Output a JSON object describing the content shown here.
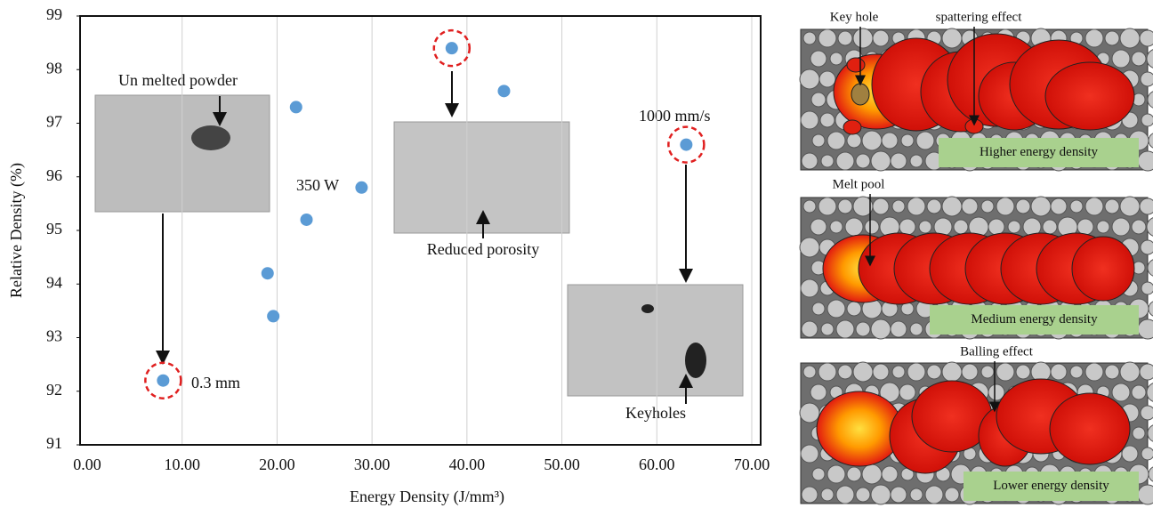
{
  "chart_data": {
    "type": "scatter",
    "x_label": "Energy Density (J/mm³)",
    "y_label": "Relative Density (%)",
    "x": [
      8.0,
      19.0,
      19.6,
      22.0,
      23.1,
      28.9,
      38.4,
      43.9,
      63.1
    ],
    "values": [
      92.2,
      94.2,
      93.4,
      97.3,
      95.2,
      95.8,
      98.4,
      97.6,
      96.6
    ],
    "color": "#5b9bd5",
    "xlim": [
      0,
      70
    ],
    "ylim": [
      91,
      99
    ],
    "xticks": [
      {
        "value": 0,
        "label": "0.00"
      },
      {
        "value": 10,
        "label": "10.00"
      },
      {
        "value": 20,
        "label": "20.00"
      },
      {
        "value": 30,
        "label": "30.00"
      },
      {
        "value": 40,
        "label": "40.00"
      },
      {
        "value": 50,
        "label": "50.00"
      },
      {
        "value": 60,
        "label": "60.00"
      },
      {
        "value": 70,
        "label": "70.00"
      }
    ],
    "yticks": [
      91,
      92,
      93,
      94,
      95,
      96,
      97,
      98,
      99
    ],
    "grid": "x",
    "annotations": [
      "Un melted powder",
      "0.3 mm",
      "350 W",
      "Reduced porosity",
      "1000 mm/s",
      "Keyholes"
    ]
  },
  "diagram": {
    "panels": [
      {
        "callouts": [
          "Key hole",
          "spattering effect"
        ],
        "label": "Higher energy density"
      },
      {
        "callouts": [
          "Melt pool"
        ],
        "label": "Medium energy density"
      },
      {
        "callouts": [
          "Balling effect"
        ],
        "label": "Lower energy density"
      }
    ]
  }
}
